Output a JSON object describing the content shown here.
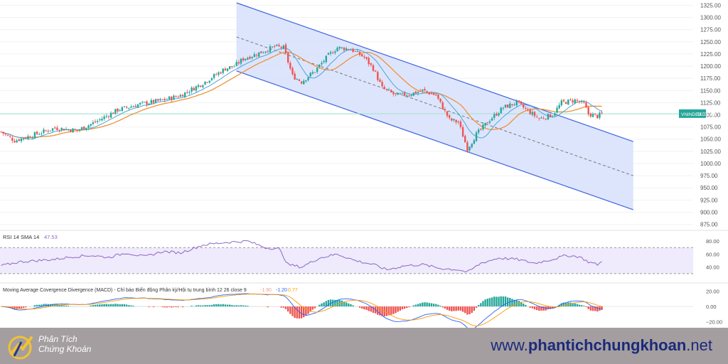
{
  "chart_data": {
    "type": "candlestick",
    "main": {
      "symbol": "VNINDEX",
      "last_value": "1102.43",
      "y_ticks": [
        "1325.00",
        "1300.00",
        "1275.00",
        "1250.00",
        "1225.00",
        "1200.00",
        "1175.00",
        "1150.00",
        "1125.00",
        "1100.00",
        "1075.00",
        "1050.00",
        "1025.00",
        "1000.00",
        "975.00",
        "950.00",
        "925.00",
        "900.00",
        "875.00"
      ],
      "ylim": [
        870,
        1330
      ],
      "anchors": [
        [
          0,
          1065
        ],
        [
          6,
          1047
        ],
        [
          14,
          1058
        ],
        [
          24,
          1073
        ],
        [
          34,
          1068
        ],
        [
          42,
          1085
        ],
        [
          52,
          1110
        ],
        [
          62,
          1122
        ],
        [
          72,
          1130
        ],
        [
          80,
          1140
        ],
        [
          90,
          1165
        ],
        [
          100,
          1195
        ],
        [
          104,
          1200
        ],
        [
          108,
          1215
        ],
        [
          114,
          1225
        ],
        [
          122,
          1240
        ],
        [
          126,
          1238
        ],
        [
          130,
          1180
        ],
        [
          134,
          1168
        ],
        [
          140,
          1190
        ],
        [
          146,
          1222
        ],
        [
          150,
          1238
        ],
        [
          156,
          1235
        ],
        [
          162,
          1218
        ],
        [
          166,
          1195
        ],
        [
          170,
          1155
        ],
        [
          176,
          1140
        ],
        [
          182,
          1142
        ],
        [
          188,
          1150
        ],
        [
          194,
          1140
        ],
        [
          200,
          1090
        ],
        [
          204,
          1085
        ],
        [
          208,
          1030
        ],
        [
          212,
          1060
        ],
        [
          218,
          1090
        ],
        [
          224,
          1115
        ],
        [
          230,
          1125
        ],
        [
          236,
          1105
        ],
        [
          240,
          1092
        ],
        [
          246,
          1100
        ],
        [
          250,
          1125
        ],
        [
          256,
          1130
        ],
        [
          260,
          1122
        ],
        [
          262,
          1102
        ],
        [
          266,
          1097
        ],
        [
          268,
          1102
        ]
      ],
      "channel": {
        "upper": [
          [
            105,
            1330
          ],
          [
            282,
            1045
          ]
        ],
        "lower": [
          [
            105,
            1190
          ],
          [
            282,
            905
          ]
        ],
        "mid": [
          [
            105,
            1260
          ],
          [
            282,
            975
          ]
        ]
      },
      "fill_color": "#d7e0fb",
      "up_color": "#26a69a",
      "down_color": "#ef5350"
    },
    "rsi": {
      "label": "RSI 14 SMA 14",
      "value": "47.53",
      "y_ticks": [
        "80.00",
        "60.00",
        "40.00"
      ],
      "band": [
        30,
        70
      ],
      "anchors": [
        [
          0,
          42
        ],
        [
          8,
          48
        ],
        [
          16,
          50
        ],
        [
          24,
          52
        ],
        [
          32,
          56
        ],
        [
          40,
          58
        ],
        [
          48,
          55
        ],
        [
          56,
          62
        ],
        [
          64,
          56
        ],
        [
          72,
          64
        ],
        [
          80,
          62
        ],
        [
          90,
          74
        ],
        [
          100,
          78
        ],
        [
          110,
          80
        ],
        [
          118,
          70
        ],
        [
          124,
          68
        ],
        [
          128,
          44
        ],
        [
          134,
          40
        ],
        [
          142,
          54
        ],
        [
          150,
          60
        ],
        [
          158,
          50
        ],
        [
          166,
          44
        ],
        [
          172,
          36
        ],
        [
          180,
          42
        ],
        [
          188,
          44
        ],
        [
          196,
          38
        ],
        [
          204,
          36
        ],
        [
          208,
          32
        ],
        [
          214,
          46
        ],
        [
          222,
          54
        ],
        [
          230,
          52
        ],
        [
          238,
          46
        ],
        [
          246,
          52
        ],
        [
          252,
          58
        ],
        [
          258,
          56
        ],
        [
          262,
          48
        ],
        [
          266,
          44
        ],
        [
          268,
          48
        ]
      ]
    },
    "macd": {
      "label": "Moving Average Covergence Divergence (MACD) - Chỉ báo Biến động Phân kỳ/Hội tụ trung bình 12 26 close 9",
      "values": [
        "-1.90",
        "-1.20",
        "0.77"
      ],
      "y_ticks": [
        "20.00",
        "0.00",
        "−20.00"
      ]
    }
  },
  "brand": {
    "line1": "Phân Tích",
    "line2": "Chứng Khoán",
    "website_prefix": "www.",
    "website_name": "phantichchungkhoan",
    "website_suffix": ".net"
  }
}
